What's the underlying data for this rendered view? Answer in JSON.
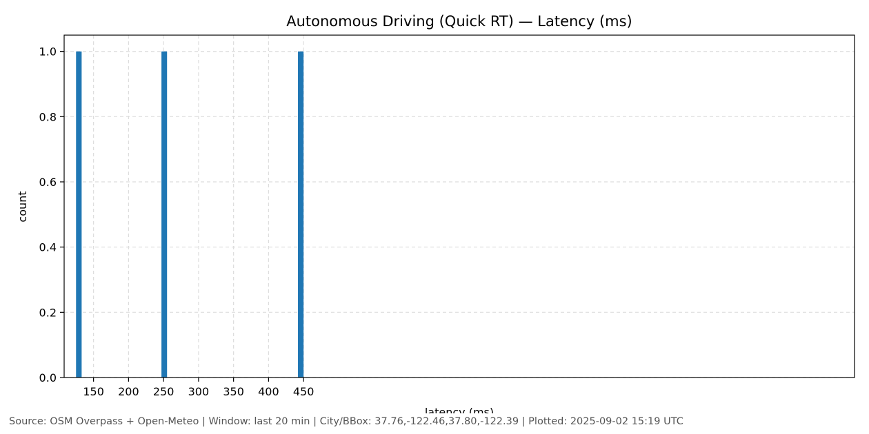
{
  "chart_data": {
    "type": "bar",
    "title": "Autonomous Driving (Quick RT) — Latency (ms)",
    "xlabel": "latency (ms)",
    "ylabel": "count",
    "xlim": [
      108,
      1237
    ],
    "ylim": [
      0,
      1.05
    ],
    "xticks": [
      150,
      200,
      250,
      300,
      350,
      400,
      450
    ],
    "yticks": [
      0.0,
      0.2,
      0.4,
      0.6,
      0.8,
      1.0
    ],
    "ytick_labels": [
      "0.0",
      "0.2",
      "0.4",
      "0.6",
      "0.8",
      "1.0"
    ],
    "bars": [
      {
        "x0": 125,
        "x1": 133,
        "value": 1
      },
      {
        "x0": 247,
        "x1": 255,
        "value": 1
      },
      {
        "x0": 442,
        "x1": 450,
        "value": 1
      }
    ],
    "bar_color": "#1f77b4",
    "grid": true
  },
  "footer": "Source: OSM Overpass + Open-Meteo | Window: last 20 min | City/BBox: 37.76,-122.46,37.80,-122.39 | Plotted: 2025-09-02 15:19 UTC"
}
